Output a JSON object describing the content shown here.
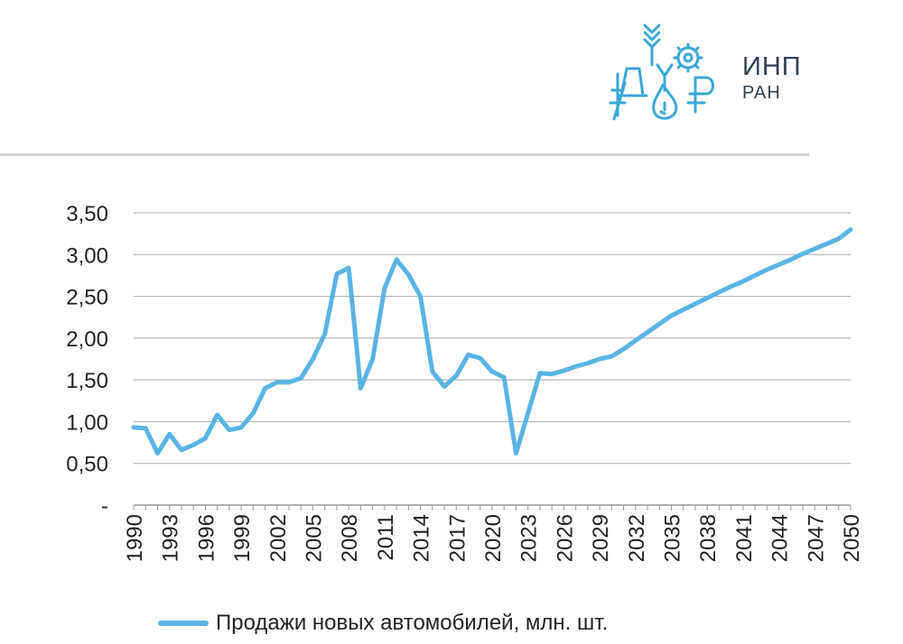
{
  "logo": {
    "title": "ИНП",
    "subtitle": "РАН",
    "emblem_icon": "inp-ran-emblem",
    "accent_color": "#3aa7d8",
    "text_color": "#2e4154"
  },
  "chart_data": {
    "type": "line",
    "title": "",
    "xlabel": "",
    "ylabel": "",
    "ylim": [
      0,
      3.5
    ],
    "y_ticks": [
      "-",
      "0,50",
      "1,00",
      "1,50",
      "2,00",
      "2,50",
      "3,00",
      "3,50"
    ],
    "x_ticks": [
      "1990",
      "1993",
      "1996",
      "1999",
      "2002",
      "2005",
      "2008",
      "2011",
      "2014",
      "2017",
      "2020",
      "2023",
      "2026",
      "2029",
      "2032",
      "2035",
      "2038",
      "2041",
      "2044",
      "2047",
      "2050"
    ],
    "grid": "horizontal",
    "legend_position": "bottom",
    "series": [
      {
        "name": "Продажи новых автомобилей, млн. шт.",
        "color": "#5ab4e4",
        "x": [
          1990,
          1991,
          1992,
          1993,
          1994,
          1995,
          1996,
          1997,
          1998,
          1999,
          2000,
          2001,
          2002,
          2003,
          2004,
          2005,
          2006,
          2007,
          2008,
          2009,
          2010,
          2011,
          2012,
          2013,
          2014,
          2015,
          2016,
          2017,
          2018,
          2019,
          2020,
          2021,
          2022,
          2023,
          2024,
          2025,
          2026,
          2027,
          2028,
          2029,
          2030,
          2031,
          2032,
          2033,
          2034,
          2035,
          2036,
          2037,
          2038,
          2039,
          2040,
          2041,
          2042,
          2043,
          2044,
          2045,
          2046,
          2047,
          2048,
          2049,
          2050
        ],
        "values": [
          0.93,
          0.92,
          0.62,
          0.85,
          0.66,
          0.72,
          0.8,
          1.08,
          0.9,
          0.93,
          1.1,
          1.4,
          1.47,
          1.47,
          1.52,
          1.75,
          2.05,
          2.77,
          2.84,
          1.4,
          1.75,
          2.6,
          2.94,
          2.76,
          2.5,
          1.6,
          1.42,
          1.55,
          1.8,
          1.76,
          1.6,
          1.53,
          0.62,
          1.1,
          1.58,
          1.57,
          1.61,
          1.66,
          1.7,
          1.75,
          1.78,
          1.87,
          1.97,
          2.07,
          2.17,
          2.27,
          2.34,
          2.41,
          2.48,
          2.55,
          2.62,
          2.68,
          2.75,
          2.82,
          2.88,
          2.94,
          3.01,
          3.07,
          3.13,
          3.19,
          3.3
        ]
      }
    ]
  }
}
